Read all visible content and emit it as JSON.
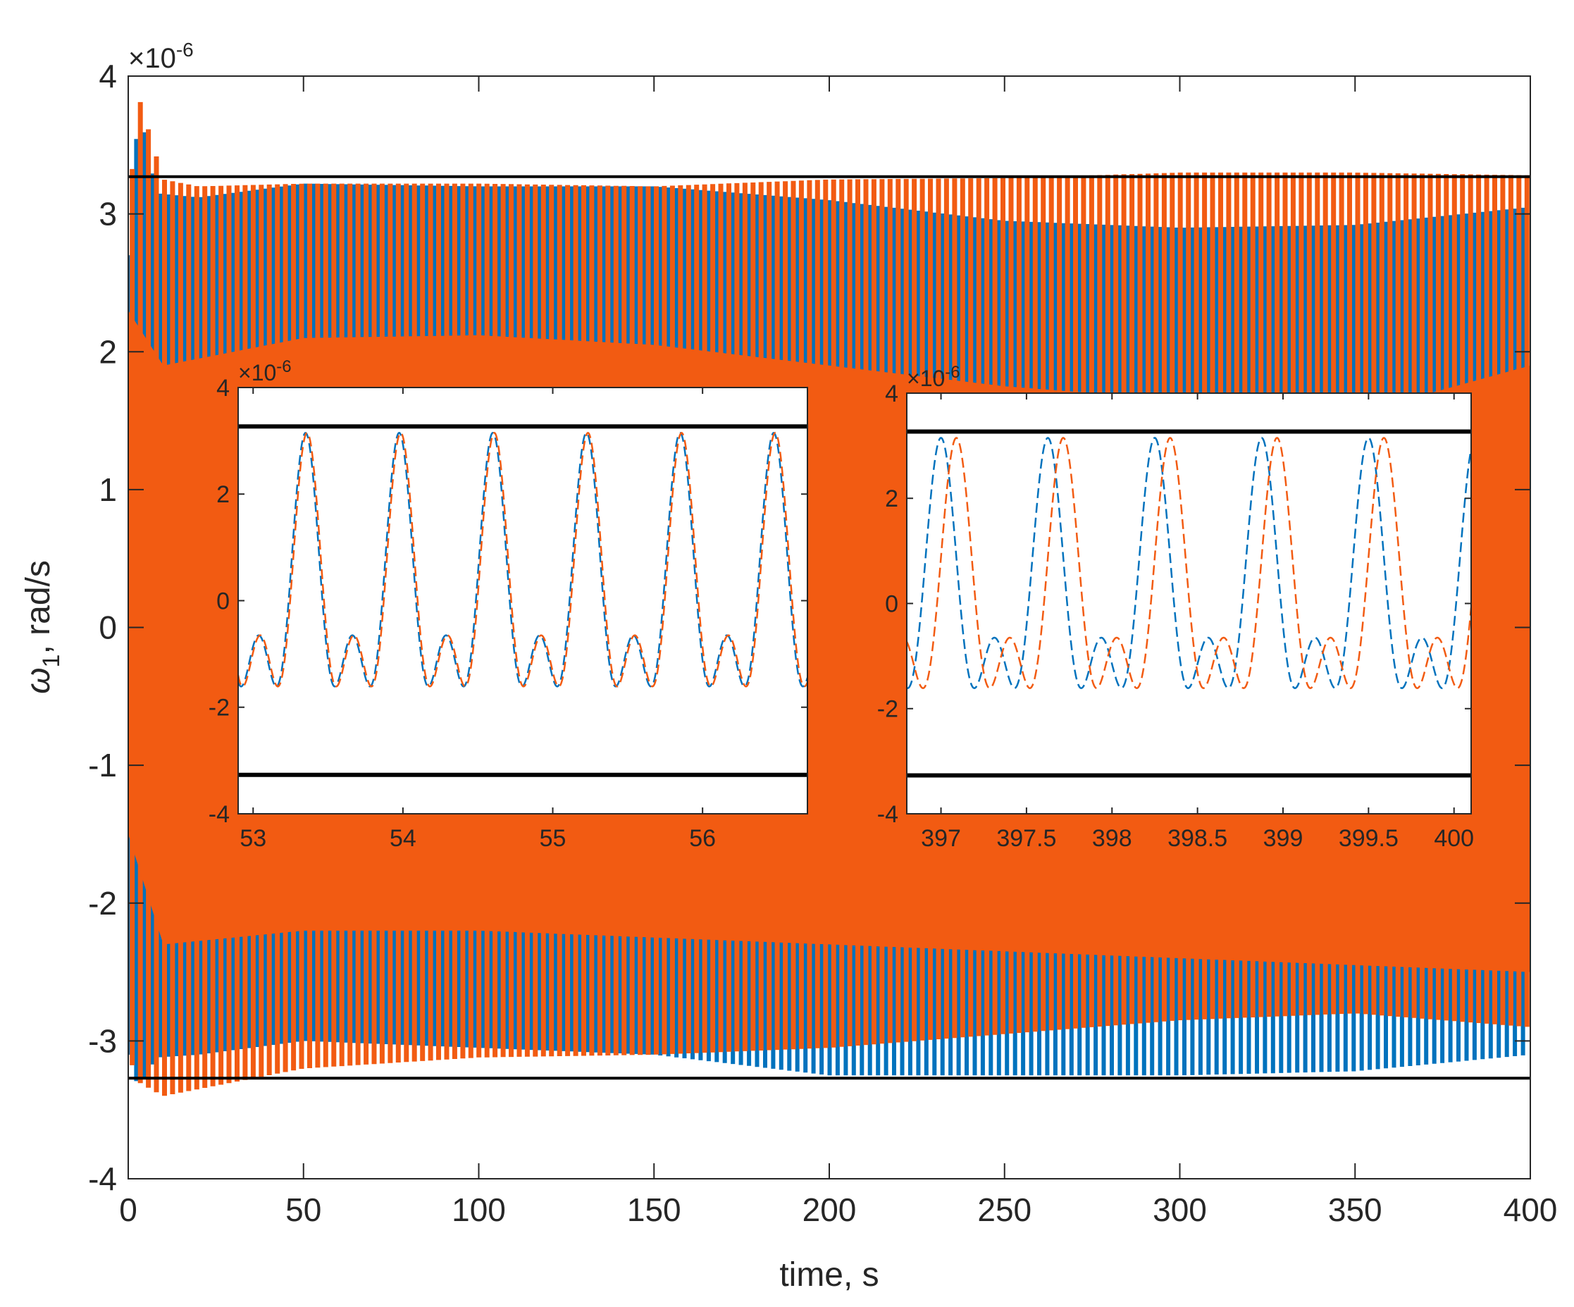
{
  "colors": {
    "series_blue": "#0072BD",
    "series_orange": "#F25B12",
    "bound": "#000000",
    "axes": "#262626",
    "background": "#ffffff"
  },
  "chart_data": [
    {
      "id": "main",
      "type": "line",
      "title": "",
      "xlabel": "time, s",
      "ylabel_symbol": "ω",
      "ylabel_sub": "1",
      "ylabel_rest": ", rad/s",
      "y_exponent_base": "×10",
      "y_exponent_power": "-6",
      "xlim": [
        0,
        400
      ],
      "ylim": [
        -4,
        4
      ],
      "y_scale_factor": 1e-06,
      "xticks": [
        0,
        50,
        100,
        150,
        200,
        250,
        300,
        350,
        400
      ],
      "yticks": [
        -4,
        -3,
        -2,
        -1,
        0,
        1,
        2,
        3,
        4
      ],
      "grid": false,
      "legend": "none",
      "bounds": [
        3.27,
        -3.27
      ],
      "series": [
        {
          "color": "#0072BD",
          "style": "solid",
          "envelope": {
            "x": [
              0,
              3,
              8,
              20,
              50,
              100,
              150,
              200,
              250,
              300,
              350,
              400
            ],
            "upper": [
              2.7,
              3.8,
              3.15,
              3.12,
              3.22,
              3.2,
              3.2,
              3.1,
              2.95,
              2.9,
              2.92,
              3.05
            ],
            "lower": [
              -3.1,
              -3.35,
              -3.12,
              -3.1,
              -3.0,
              -3.05,
              -3.1,
              -3.25,
              -3.25,
              -3.25,
              -3.22,
              -3.1
            ]
          }
        },
        {
          "color": "#F25B12",
          "style": "dashed",
          "envelope": {
            "x": [
              0,
              3,
              10,
              20,
              50,
              100,
              150,
              200,
              250,
              300,
              350,
              400
            ],
            "upper": [
              3.0,
              3.85,
              3.25,
              3.2,
              3.22,
              3.22,
              3.2,
              3.25,
              3.26,
              3.3,
              3.3,
              3.28
            ],
            "lower": [
              -3.1,
              -3.3,
              -3.4,
              -3.35,
              -3.2,
              -3.12,
              -3.1,
              -3.05,
              -2.95,
              -2.85,
              -2.8,
              -2.9
            ]
          }
        }
      ]
    },
    {
      "id": "inset-left",
      "type": "line",
      "y_exponent_base": "×10",
      "y_exponent_power": "-6",
      "xlim": [
        52.9,
        56.7
      ],
      "ylim": [
        -4,
        4
      ],
      "xticks": [
        53,
        54,
        55,
        56
      ],
      "yticks": [
        -4,
        -2,
        0,
        2,
        4
      ],
      "bounds": [
        3.27,
        -3.27
      ],
      "signal": {
        "components": [
          {
            "amplitude": 1.9,
            "freq_hz": 1.6
          },
          {
            "amplitude": 1.25,
            "freq_hz": 3.2
          }
        ],
        "t0": 53.35
      },
      "series": [
        {
          "color": "#0072BD",
          "style": "dashed",
          "phase_shift": 0
        },
        {
          "color": "#F25B12",
          "style": "dashed",
          "phase_shift": 0.01
        }
      ]
    },
    {
      "id": "inset-right",
      "type": "line",
      "y_exponent_base": "×10",
      "y_exponent_power": "-6",
      "xlim": [
        396.8,
        400.1
      ],
      "ylim": [
        -4,
        4
      ],
      "xticks": [
        397,
        397.5,
        398,
        398.5,
        399,
        399.5,
        400
      ],
      "yticks": [
        -4,
        -2,
        0,
        2,
        4
      ],
      "bounds": [
        3.27,
        -3.27
      ],
      "signal": {
        "components": [
          {
            "amplitude": 1.9,
            "freq_hz": 1.6
          },
          {
            "amplitude": 1.25,
            "freq_hz": 3.2
          }
        ],
        "t0": 397.0
      },
      "series": [
        {
          "color": "#0072BD",
          "style": "dashed",
          "phase_shift": 0
        },
        {
          "color": "#F25B12",
          "style": "dashed",
          "phase_shift": 0.09
        }
      ]
    }
  ]
}
